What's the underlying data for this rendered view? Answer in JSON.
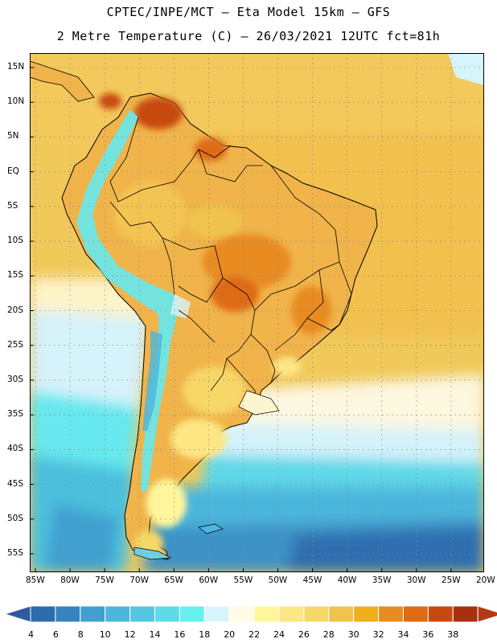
{
  "header": {
    "line1": "CPTEC/INPE/MCT –  Eta Model 15km – GFS",
    "line2": "2 Metre Temperature (C) – 26/03/2021 12UTC fct=81h"
  },
  "map": {
    "lat_labels": [
      "15N",
      "10N",
      "5N",
      "EQ",
      "5S",
      "10S",
      "15S",
      "20S",
      "25S",
      "30S",
      "35S",
      "40S",
      "45S",
      "50S",
      "55S"
    ],
    "lat_values": [
      15,
      10,
      5,
      0,
      -5,
      -10,
      -15,
      -20,
      -25,
      -30,
      -35,
      -40,
      -45,
      -50,
      -55
    ],
    "lon_labels": [
      "85W",
      "80W",
      "75W",
      "70W",
      "65W",
      "60W",
      "55W",
      "50W",
      "45W",
      "40W",
      "35W",
      "30W",
      "25W",
      "20W"
    ],
    "lon_values": [
      -85,
      -80,
      -75,
      -70,
      -65,
      -60,
      -55,
      -50,
      -45,
      -40,
      -35,
      -30,
      -25,
      -20
    ],
    "ocean_color": "#f0c95a",
    "land_color": "#f0b64a",
    "border_color": "#000000"
  },
  "colorbar": {
    "labels": [
      "4",
      "6",
      "8",
      "10",
      "12",
      "14",
      "16",
      "18",
      "20",
      "22",
      "24",
      "26",
      "28",
      "30",
      "32",
      "34",
      "36",
      "38"
    ],
    "colors": [
      "#2e6cb0",
      "#3683c0",
      "#41a0d0",
      "#4cb6dc",
      "#54c8e2",
      "#5edbe8",
      "#66f0ef",
      "#d6f4fb",
      "#fffbe6",
      "#fff59a",
      "#fde684",
      "#f6d767",
      "#efc34c",
      "#f0ad1c",
      "#e88c22",
      "#df6a14",
      "#c84810",
      "#a83010"
    ],
    "under_color": "#2f5a9e",
    "over_color": "#b33a10"
  }
}
